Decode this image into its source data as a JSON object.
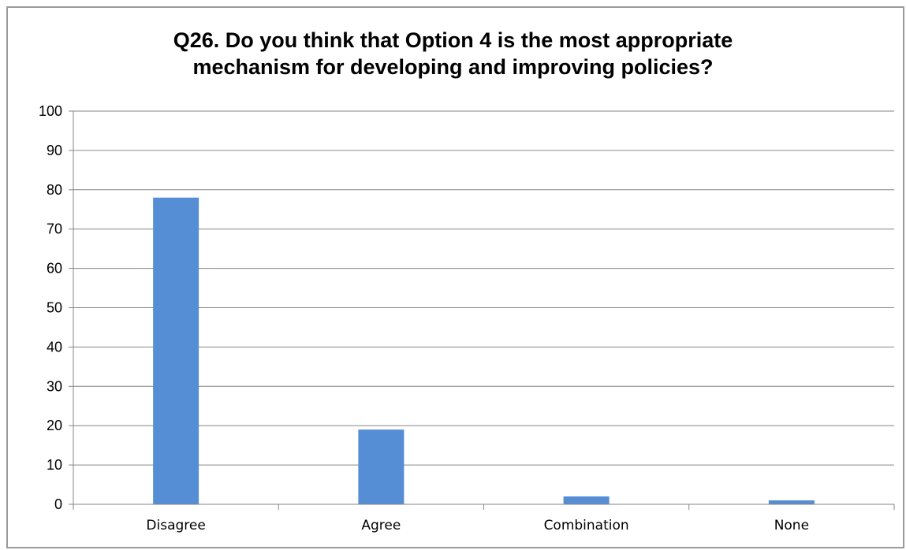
{
  "chart_data": {
    "type": "bar",
    "title_lines": [
      "Q26. Do you think that Option 4 is the most appropriate",
      "mechanism for developing and improving policies?"
    ],
    "categories": [
      "Disagree",
      "Agree",
      "Combination",
      "None"
    ],
    "values": [
      78,
      19,
      2,
      1
    ],
    "y_ticks": [
      0,
      10,
      20,
      30,
      40,
      50,
      60,
      70,
      80,
      90,
      100
    ],
    "ylim": [
      0,
      100
    ],
    "grid": true,
    "legend": "none",
    "bar_color": "#558ED5",
    "grid_color": "#868686"
  }
}
